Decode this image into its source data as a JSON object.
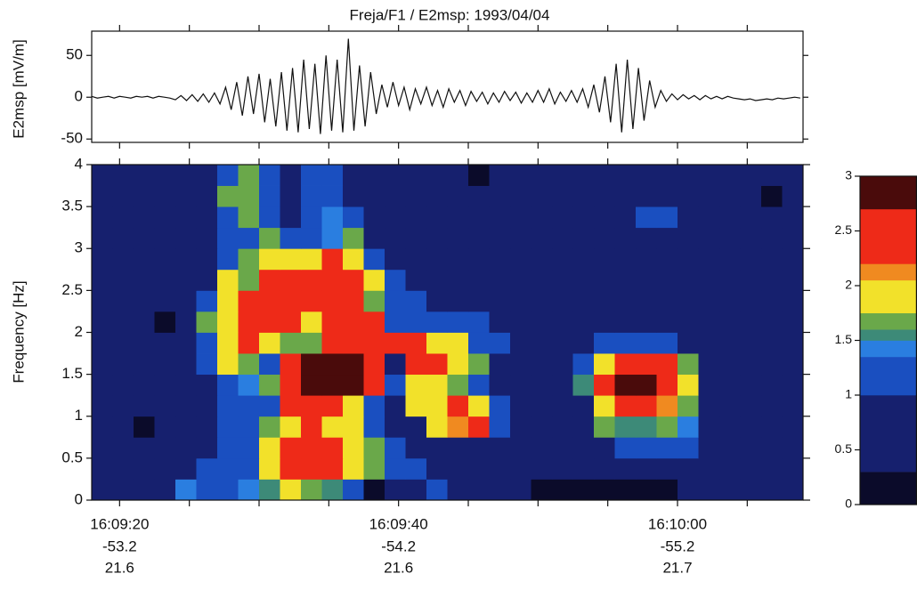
{
  "chart_data": [
    {
      "type": "line",
      "title": "Freja/F1 / E2msp: 1993/04/04",
      "ylabel": "E2msp [mV/m]",
      "color": "#111111",
      "xlim": [
        18,
        69
      ],
      "ylim": [
        -54,
        79
      ],
      "yticks": [
        -50,
        0,
        50
      ],
      "x": [
        18.0,
        18.4,
        18.8,
        19.2,
        19.6,
        20.0,
        20.4,
        20.8,
        21.2,
        21.6,
        22.0,
        22.4,
        22.8,
        23.2,
        23.6,
        24.0,
        24.4,
        24.8,
        25.2,
        25.6,
        26.0,
        26.4,
        26.8,
        27.2,
        27.6,
        28.0,
        28.4,
        28.8,
        29.2,
        29.6,
        30.0,
        30.4,
        30.8,
        31.2,
        31.6,
        32.0,
        32.4,
        32.8,
        33.2,
        33.6,
        34.0,
        34.4,
        34.8,
        35.2,
        35.6,
        36.0,
        36.4,
        36.8,
        37.2,
        37.6,
        38.0,
        38.4,
        38.8,
        39.2,
        39.6,
        40.0,
        40.4,
        40.8,
        41.2,
        41.6,
        42.0,
        42.4,
        42.8,
        43.2,
        43.6,
        44.0,
        44.4,
        44.8,
        45.2,
        45.6,
        46.0,
        46.4,
        46.8,
        47.2,
        47.6,
        48.0,
        48.4,
        48.8,
        49.2,
        49.6,
        50.0,
        50.4,
        50.8,
        51.2,
        51.6,
        52.0,
        52.4,
        52.8,
        53.2,
        53.6,
        54.0,
        54.4,
        54.8,
        55.2,
        55.6,
        56.0,
        56.4,
        56.8,
        57.2,
        57.6,
        58.0,
        58.4,
        58.8,
        59.2,
        59.6,
        60.0,
        60.4,
        60.8,
        61.2,
        61.6,
        62.0,
        62.4,
        62.8,
        63.2,
        63.6,
        64.0,
        64.4,
        64.8,
        65.2,
        65.6,
        66.0,
        66.4,
        66.8,
        67.2,
        67.6,
        68.0,
        68.4,
        68.8
      ],
      "values": [
        1,
        -1,
        0,
        1,
        -1,
        1,
        0,
        -1,
        1,
        0,
        1,
        -1,
        1,
        0,
        -1,
        -3,
        2,
        -4,
        3,
        -5,
        4,
        -6,
        5,
        -8,
        12,
        -15,
        18,
        -22,
        25,
        -20,
        28,
        -30,
        22,
        -35,
        30,
        -40,
        35,
        -42,
        45,
        -38,
        40,
        -44,
        50,
        -40,
        45,
        -42,
        70,
        -40,
        38,
        -35,
        30,
        -20,
        15,
        -12,
        18,
        -10,
        12,
        -15,
        10,
        -8,
        12,
        -10,
        8,
        -12,
        10,
        -6,
        8,
        -10,
        7,
        -5,
        6,
        -8,
        5,
        -6,
        7,
        -4,
        6,
        -7,
        5,
        -6,
        8,
        -6,
        10,
        -8,
        6,
        -5,
        8,
        -6,
        10,
        -12,
        15,
        -18,
        25,
        -30,
        40,
        -42,
        45,
        -38,
        35,
        -28,
        20,
        -12,
        8,
        -5,
        4,
        -3,
        3,
        -2,
        2,
        -3,
        2,
        -2,
        1,
        -2,
        1,
        -1,
        -2,
        -3,
        -2,
        -4,
        -3,
        -2,
        -3,
        -1,
        -2,
        -1,
        0,
        -1
      ]
    },
    {
      "type": "heatmap",
      "ylabel": "Frequency [Hz]",
      "xlim": [
        18,
        69
      ],
      "ylim": [
        0,
        4
      ],
      "yticks": [
        0,
        0.5,
        1,
        1.5,
        2,
        2.5,
        3,
        3.5,
        4
      ],
      "xticks": [
        {
          "value": 20,
          "label": "16:09:20"
        },
        {
          "value": 40,
          "label": "16:09:40"
        },
        {
          "value": 60,
          "label": "16:10:00"
        }
      ],
      "xtick_sublabels": [
        [
          -53.2,
          21.6
        ],
        [
          -54.2,
          21.6
        ],
        [
          -55.2,
          21.7
        ]
      ],
      "xminor_ticks": [
        25,
        30,
        35,
        45,
        50,
        55,
        65
      ],
      "x": [
        18.75,
        20.25,
        21.75,
        23.25,
        24.75,
        26.25,
        27.75,
        29.25,
        30.75,
        32.25,
        33.75,
        35.25,
        36.75,
        38.25,
        39.75,
        41.25,
        42.75,
        44.25,
        45.75,
        47.25,
        48.75,
        50.25,
        51.75,
        53.25,
        54.75,
        56.25,
        57.75,
        59.25,
        60.75,
        62.25,
        63.75,
        65.25,
        66.75,
        68.25
      ],
      "y": [
        0.125,
        0.375,
        0.625,
        0.875,
        1.125,
        1.375,
        1.625,
        1.875,
        2.125,
        2.375,
        2.625,
        2.875,
        3.125,
        3.375,
        3.625,
        3.875
      ],
      "z": [
        [
          0.6,
          0.6,
          0.6,
          0.6,
          1.42,
          1.2,
          1.2,
          1.42,
          1.55,
          1.9,
          1.7,
          1.55,
          1.2,
          0.15,
          0.6,
          0.6,
          1.2,
          0.6,
          0.6,
          0.6,
          0.6,
          0.15,
          0.15,
          0.15,
          0.15,
          0.15,
          0.15,
          0.15,
          0.6,
          0.6,
          0.6,
          0.6,
          0.6,
          0.6
        ],
        [
          0.6,
          0.6,
          0.6,
          0.6,
          0.6,
          1.2,
          1.2,
          1.2,
          1.9,
          2.4,
          2.4,
          2.4,
          1.9,
          1.7,
          1.2,
          1.2,
          0.6,
          0.6,
          0.6,
          0.6,
          0.6,
          0.6,
          0.6,
          0.6,
          0.6,
          0.6,
          0.6,
          0.6,
          0.6,
          0.6,
          0.6,
          0.6,
          0.6,
          0.6
        ],
        [
          0.6,
          0.6,
          0.6,
          0.6,
          0.6,
          0.6,
          1.2,
          1.2,
          1.9,
          2.4,
          2.4,
          2.4,
          1.9,
          1.7,
          1.2,
          0.6,
          0.6,
          0.6,
          0.6,
          0.6,
          0.6,
          0.6,
          0.6,
          0.6,
          0.6,
          1.2,
          1.2,
          1.2,
          1.2,
          0.6,
          0.6,
          0.6,
          0.6,
          0.6
        ],
        [
          0.6,
          0.6,
          0.15,
          0.6,
          0.6,
          0.6,
          1.2,
          1.2,
          1.7,
          1.9,
          2.4,
          1.9,
          1.9,
          1.2,
          0.6,
          0.6,
          1.9,
          2.1,
          2.4,
          1.2,
          0.6,
          0.6,
          0.6,
          0.6,
          1.7,
          1.55,
          1.55,
          1.7,
          1.42,
          0.6,
          0.6,
          0.6,
          0.6,
          0.6
        ],
        [
          0.6,
          0.6,
          0.6,
          0.6,
          0.6,
          0.6,
          1.2,
          1.2,
          1.2,
          2.4,
          2.4,
          2.4,
          1.9,
          1.2,
          0.6,
          1.9,
          1.9,
          2.4,
          1.9,
          1.2,
          0.6,
          0.6,
          0.6,
          0.6,
          1.9,
          2.4,
          2.4,
          2.1,
          1.7,
          0.6,
          0.6,
          0.6,
          0.6,
          0.6
        ],
        [
          0.6,
          0.6,
          0.6,
          0.6,
          0.6,
          0.6,
          1.2,
          1.42,
          1.7,
          2.4,
          2.85,
          2.85,
          2.85,
          2.4,
          1.2,
          1.9,
          1.9,
          1.7,
          1.2,
          0.6,
          0.6,
          0.6,
          0.6,
          1.55,
          2.4,
          2.85,
          2.85,
          2.4,
          1.9,
          0.6,
          0.6,
          0.6,
          0.6,
          0.6
        ],
        [
          0.6,
          0.6,
          0.6,
          0.6,
          0.6,
          1.2,
          1.9,
          1.7,
          1.2,
          2.4,
          2.85,
          2.85,
          2.85,
          2.4,
          0.6,
          2.4,
          2.4,
          1.9,
          1.7,
          0.6,
          0.6,
          0.6,
          0.6,
          1.2,
          1.9,
          2.4,
          2.4,
          2.4,
          1.7,
          0.6,
          0.6,
          0.6,
          0.6,
          0.6
        ],
        [
          0.6,
          0.6,
          0.6,
          0.6,
          0.6,
          1.2,
          1.9,
          2.4,
          1.9,
          1.7,
          1.7,
          2.4,
          2.4,
          2.4,
          2.4,
          2.4,
          1.9,
          1.9,
          1.2,
          1.2,
          0.6,
          0.6,
          0.6,
          0.6,
          1.2,
          1.2,
          1.2,
          1.2,
          0.6,
          0.6,
          0.6,
          0.6,
          0.6,
          0.6
        ],
        [
          0.6,
          0.6,
          0.6,
          0.15,
          0.6,
          1.7,
          1.9,
          2.4,
          2.4,
          2.4,
          1.9,
          2.4,
          2.4,
          2.4,
          1.2,
          1.2,
          1.2,
          1.2,
          1.2,
          0.6,
          0.6,
          0.6,
          0.6,
          0.6,
          0.6,
          0.6,
          0.6,
          0.6,
          0.6,
          0.6,
          0.6,
          0.6,
          0.6,
          0.6
        ],
        [
          0.6,
          0.6,
          0.6,
          0.6,
          0.6,
          1.2,
          1.9,
          2.4,
          2.4,
          2.4,
          2.4,
          2.4,
          2.4,
          1.7,
          1.2,
          1.2,
          0.6,
          0.6,
          0.6,
          0.6,
          0.6,
          0.6,
          0.6,
          0.6,
          0.6,
          0.6,
          0.6,
          0.6,
          0.6,
          0.6,
          0.6,
          0.6,
          0.6,
          0.6
        ],
        [
          0.6,
          0.6,
          0.6,
          0.6,
          0.6,
          0.6,
          1.9,
          1.7,
          2.4,
          2.4,
          2.4,
          2.4,
          2.4,
          1.9,
          1.2,
          0.6,
          0.6,
          0.6,
          0.6,
          0.6,
          0.6,
          0.6,
          0.6,
          0.6,
          0.6,
          0.6,
          0.6,
          0.6,
          0.6,
          0.6,
          0.6,
          0.6,
          0.6,
          0.6
        ],
        [
          0.6,
          0.6,
          0.6,
          0.6,
          0.6,
          0.6,
          1.2,
          1.7,
          1.9,
          1.9,
          1.9,
          2.4,
          1.9,
          1.2,
          0.6,
          0.6,
          0.6,
          0.6,
          0.6,
          0.6,
          0.6,
          0.6,
          0.6,
          0.6,
          0.6,
          0.6,
          0.6,
          0.6,
          0.6,
          0.6,
          0.6,
          0.6,
          0.6,
          0.6
        ],
        [
          0.6,
          0.6,
          0.6,
          0.6,
          0.6,
          0.6,
          1.2,
          1.2,
          1.7,
          1.2,
          1.2,
          1.42,
          1.7,
          0.6,
          0.6,
          0.6,
          0.6,
          0.6,
          0.6,
          0.6,
          0.6,
          0.6,
          0.6,
          0.6,
          0.6,
          0.6,
          0.6,
          0.6,
          0.6,
          0.6,
          0.6,
          0.6,
          0.6,
          0.6
        ],
        [
          0.6,
          0.6,
          0.6,
          0.6,
          0.6,
          0.6,
          1.2,
          1.7,
          1.2,
          0.6,
          1.2,
          1.42,
          1.2,
          0.6,
          0.6,
          0.6,
          0.6,
          0.6,
          0.6,
          0.6,
          0.6,
          0.6,
          0.6,
          0.6,
          0.6,
          0.6,
          1.2,
          1.2,
          0.6,
          0.6,
          0.6,
          0.6,
          0.6,
          0.6
        ],
        [
          0.6,
          0.6,
          0.6,
          0.6,
          0.6,
          0.6,
          1.7,
          1.7,
          1.2,
          0.6,
          1.2,
          1.2,
          0.6,
          0.6,
          0.6,
          0.6,
          0.6,
          0.6,
          0.6,
          0.6,
          0.6,
          0.6,
          0.6,
          0.6,
          0.6,
          0.6,
          0.6,
          0.6,
          0.6,
          0.6,
          0.6,
          0.6,
          0.15,
          0.6
        ],
        [
          0.6,
          0.6,
          0.6,
          0.6,
          0.6,
          0.6,
          1.2,
          1.7,
          1.2,
          0.6,
          1.2,
          1.2,
          0.6,
          0.6,
          0.6,
          0.6,
          0.6,
          0.6,
          0.15,
          0.6,
          0.6,
          0.6,
          0.6,
          0.6,
          0.6,
          0.6,
          0.6,
          0.6,
          0.6,
          0.6,
          0.6,
          0.6,
          0.6,
          0.6
        ]
      ],
      "colorbar": {
        "lim": [
          0,
          3
        ],
        "ticks": [
          0,
          0.5,
          1,
          1.5,
          2,
          2.5,
          3
        ],
        "levels": [
          0,
          0.3,
          1,
          1.35,
          1.5,
          1.6,
          1.75,
          2.05,
          2.2,
          2.7,
          3
        ],
        "colors": [
          "#0b0b2a",
          "#16206e",
          "#1a4fc0",
          "#2a7ee0",
          "#3d8a78",
          "#6aa84a",
          "#f2e12a",
          "#f08a20",
          "#ee2a18",
          "#4a0b0b"
        ]
      }
    }
  ]
}
